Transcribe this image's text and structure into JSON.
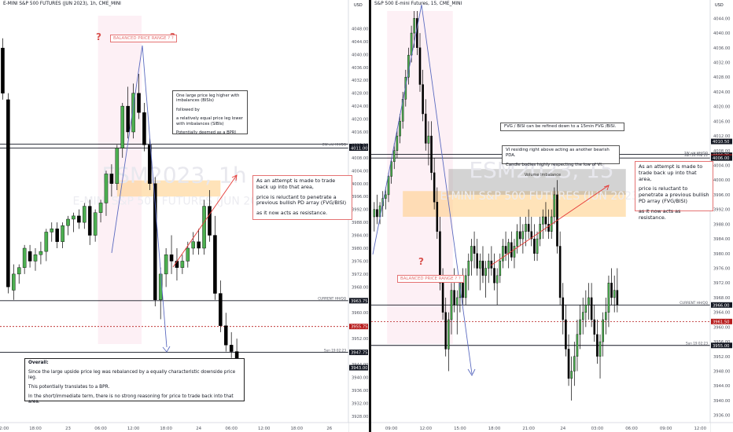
{
  "chart_data": [
    {
      "type": "candlestick",
      "title": "E-MINI S&P 500 FUTURES (JUN 2023), 1h, CME_MINI",
      "watermark_line1": "ESM2023, 1h",
      "watermark_line2": "E-MINI S&P 500 FUTURES (JUN 2023)",
      "y_unit": "USD",
      "ylim": [
        3926,
        4052
      ],
      "y_ticks": [
        "4048.00",
        "4044.00",
        "4040.00",
        "4036.00",
        "4032.00",
        "4028.00",
        "4024.00",
        "4020.00",
        "4016.00",
        "4012.00",
        "4008.00",
        "4004.00",
        "4000.00",
        "3996.00",
        "3992.00",
        "3988.00",
        "3984.00",
        "3980.00",
        "3976.00",
        "3972.00",
        "3968.00",
        "3964.00",
        "3960.00",
        "3956.00",
        "3952.00",
        "3948.00",
        "3944.00",
        "3940.00",
        "3936.00",
        "3932.00",
        "3928.00"
      ],
      "x_ticks": [
        {
          "label": "12:00",
          "i": 0
        },
        {
          "label": "18:00",
          "i": 6
        },
        {
          "label": "23",
          "i": 12
        },
        {
          "label": "06:00",
          "i": 18
        },
        {
          "label": "12:00",
          "i": 24
        },
        {
          "label": "18:00",
          "i": 30
        },
        {
          "label": "24",
          "i": 36
        },
        {
          "label": "06:00",
          "i": 42
        },
        {
          "label": "12:00",
          "i": 48
        },
        {
          "label": "18:00",
          "i": 54
        },
        {
          "label": "26",
          "i": 60
        }
      ],
      "x_slots": 64,
      "candles": [
        [
          4042,
          4045,
          4026,
          4028
        ],
        [
          4026,
          4028,
          3966,
          3968
        ],
        [
          3967,
          3975,
          3964,
          3972
        ],
        [
          3972,
          3975,
          3969,
          3974
        ],
        [
          3974,
          3981,
          3972,
          3980
        ],
        [
          3979,
          3981,
          3974,
          3976
        ],
        [
          3976,
          3980,
          3973,
          3978
        ],
        [
          3978,
          3982,
          3975,
          3979
        ],
        [
          3979,
          3986,
          3976,
          3985
        ],
        [
          3985,
          3988,
          3982,
          3986
        ],
        [
          3986,
          3988,
          3980,
          3982
        ],
        [
          3982,
          3988,
          3980,
          3987
        ],
        [
          3987,
          3990,
          3984,
          3989
        ],
        [
          3989,
          3991,
          3985,
          3990
        ],
        [
          3990,
          3992,
          3986,
          3988
        ],
        [
          3988,
          3994,
          3986,
          3993
        ],
        [
          3993,
          3995,
          3981,
          3984
        ],
        [
          3984,
          3992,
          3982,
          3991
        ],
        [
          3991,
          3995,
          3988,
          3994
        ],
        [
          3994,
          4004,
          3990,
          4003
        ],
        [
          4003,
          4006,
          3996,
          4000
        ],
        [
          4000,
          4012,
          3998,
          4011
        ],
        [
          4011,
          4025,
          4008,
          4024
        ],
        [
          4024,
          4030,
          4014,
          4016
        ],
        [
          4016,
          4031,
          4014,
          4028
        ],
        [
          4028,
          4034,
          4020,
          4022
        ],
        [
          4022,
          4025,
          4010,
          4012
        ],
        [
          4012,
          4014,
          3998,
          4000
        ],
        [
          4000,
          4002,
          3962,
          3964
        ],
        [
          3964,
          3974,
          3958,
          3972
        ],
        [
          3972,
          3980,
          3968,
          3978
        ],
        [
          3978,
          3984,
          3972,
          3976
        ],
        [
          3976,
          3980,
          3970,
          3974
        ],
        [
          3974,
          3978,
          3972,
          3976
        ],
        [
          3976,
          3982,
          3974,
          3980
        ],
        [
          3980,
          3985,
          3978,
          3982
        ],
        [
          3982,
          3986,
          3978,
          3980
        ],
        [
          3980,
          3995,
          3978,
          3993
        ],
        [
          3993,
          3998,
          3982,
          3984
        ],
        [
          3984,
          3990,
          3964,
          3966
        ],
        [
          3966,
          3970,
          3954,
          3956
        ],
        [
          3956,
          3960,
          3948,
          3950
        ],
        [
          3950,
          3954,
          3946,
          3948
        ],
        [
          3948,
          3952,
          3942,
          3943
        ]
      ],
      "annotations": {
        "balanced_range_label": "BALANCED PRICE RANGE ? ?",
        "question_mark": "?",
        "note_imbalance": [
          "One large price leg higher with imbalances (BISIs)",
          "followed by",
          "a relatively equal price leg lower with imbalances (SIBIs)",
          "Potentially deemed as a BPRI"
        ],
        "note_attempt": [
          "As an attempt is made to trade back up into that area,",
          "price is reluctant to penetrate a previous bullish PD array (FVG/BISI)",
          "as it now acts as resistance."
        ],
        "overall_box": {
          "title": "Overall:",
          "lines": [
            "Since the large upside price leg was rebalanced by a equally characteristic downside price leg.",
            "This potentially translates to a BPR.",
            "In the short/immediate term, there is no strong reasoning for price to trade back into that area."
          ]
        }
      },
      "price_labels": [
        {
          "price": 4011.5,
          "text": "4011.50",
          "color": "#131722",
          "tag": "2W old HH/QQ"
        },
        {
          "price": 4011.0,
          "text": "4011.00",
          "color": "#131722",
          "tag": ""
        },
        {
          "price": 3963.75,
          "text": "3963.75",
          "color": "#131722",
          "tag": "CURRENT HH/QQ"
        },
        {
          "price": 3955.75,
          "text": "3955.75",
          "color": "#b71c1c",
          "tag": ""
        },
        {
          "price": 3947.75,
          "text": "3947.75",
          "color": "#131722",
          "tag": "Sun 19 02:23"
        },
        {
          "price": 3943.0,
          "text": "3943.00",
          "color": "#131722",
          "tag": ""
        }
      ],
      "hlines": [
        4012.25,
        4011.0,
        3963.75,
        3947.75
      ],
      "dotted_red_line": 3955.75,
      "zones": {
        "pink_cols": [
          18,
          25
        ],
        "orange": [
          3996,
          4001
        ],
        "orange_cols": [
          21,
          40
        ]
      }
    },
    {
      "type": "candlestick",
      "title": "S&P 500 E-mini Futures, 15, CME_MINI",
      "watermark_line1": "ESM2023, 15",
      "watermark_line2": "E-MINI S&P 500 FUTURES (JUN 2023)",
      "y_unit": "USD",
      "ylim": [
        3934,
        4046
      ],
      "y_ticks": [
        "4044.00",
        "4040.00",
        "4036.00",
        "4032.00",
        "4028.00",
        "4024.00",
        "4020.00",
        "4016.00",
        "4012.00",
        "4008.00",
        "4004.00",
        "4000.00",
        "3996.00",
        "3992.00",
        "3988.00",
        "3984.00",
        "3980.00",
        "3976.00",
        "3972.00",
        "3968.00",
        "3964.00",
        "3960.00",
        "3956.00",
        "3952.00",
        "3948.00",
        "3944.00",
        "3940.00",
        "3936.00"
      ],
      "x_ticks": [
        {
          "label": "09:00",
          "i": 6
        },
        {
          "label": "12:00",
          "i": 18
        },
        {
          "label": "15:00",
          "i": 30
        },
        {
          "label": "18:00",
          "i": 42
        },
        {
          "label": "21:00",
          "i": 54
        },
        {
          "label": "24",
          "i": 66
        },
        {
          "label": "03:00",
          "i": 78
        },
        {
          "label": "06:00",
          "i": 90
        },
        {
          "label": "09:00",
          "i": 102
        },
        {
          "label": "12:00",
          "i": 114
        }
      ],
      "x_slots": 118,
      "candles": [
        [
          3990,
          3994,
          3986,
          3992
        ],
        [
          3992,
          3996,
          3988,
          3990
        ],
        [
          3990,
          3994,
          3988,
          3993
        ],
        [
          3993,
          3997,
          3990,
          3995
        ],
        [
          3995,
          3998,
          3992,
          3996
        ],
        [
          3996,
          4002,
          3994,
          4001
        ],
        [
          4001,
          4006,
          3999,
          4005
        ],
        [
          4005,
          4010,
          4003,
          4008
        ],
        [
          4008,
          4014,
          4006,
          4012
        ],
        [
          4012,
          4018,
          4010,
          4016
        ],
        [
          4016,
          4024,
          4014,
          4022
        ],
        [
          4022,
          4030,
          4020,
          4028
        ],
        [
          4028,
          4036,
          4026,
          4034
        ],
        [
          4034,
          4042,
          4032,
          4040
        ],
        [
          4040,
          4046,
          4036,
          4044
        ],
        [
          4044,
          4046,
          4034,
          4036
        ],
        [
          4036,
          4040,
          4024,
          4026
        ],
        [
          4026,
          4030,
          4016,
          4018
        ],
        [
          4018,
          4022,
          4008,
          4010
        ],
        [
          4010,
          4016,
          4004,
          4012
        ],
        [
          4012,
          4016,
          4000,
          4002
        ],
        [
          4002,
          4006,
          3992,
          3994
        ],
        [
          3994,
          3998,
          3984,
          3986
        ],
        [
          3986,
          3990,
          3970,
          3972
        ],
        [
          3972,
          3976,
          3962,
          3964
        ],
        [
          3964,
          3968,
          3952,
          3954
        ],
        [
          3954,
          3964,
          3948,
          3962
        ],
        [
          3962,
          3972,
          3958,
          3970
        ],
        [
          3970,
          3976,
          3964,
          3966
        ],
        [
          3966,
          3970,
          3958,
          3968
        ],
        [
          3968,
          3974,
          3964,
          3972
        ],
        [
          3972,
          3976,
          3966,
          3968
        ],
        [
          3968,
          3976,
          3966,
          3974
        ],
        [
          3974,
          3980,
          3970,
          3978
        ],
        [
          3978,
          3984,
          3974,
          3982
        ],
        [
          3982,
          3986,
          3976,
          3980
        ],
        [
          3980,
          3984,
          3974,
          3976
        ],
        [
          3976,
          3980,
          3970,
          3978
        ],
        [
          3978,
          3982,
          3972,
          3974
        ],
        [
          3974,
          3978,
          3968,
          3976
        ],
        [
          3976,
          3980,
          3972,
          3978
        ],
        [
          3978,
          3982,
          3974,
          3976
        ],
        [
          3976,
          3980,
          3970,
          3972
        ],
        [
          3972,
          3976,
          3966,
          3974
        ],
        [
          3974,
          3980,
          3972,
          3978
        ],
        [
          3978,
          3984,
          3976,
          3982
        ],
        [
          3982,
          3986,
          3978,
          3980
        ],
        [
          3980,
          3984,
          3976,
          3983
        ],
        [
          3983,
          3986,
          3978,
          3979
        ],
        [
          3979,
          3984,
          3976,
          3982
        ],
        [
          3982,
          3988,
          3980,
          3986
        ],
        [
          3986,
          3990,
          3982,
          3984
        ],
        [
          3984,
          3988,
          3980,
          3986
        ],
        [
          3986,
          3990,
          3982,
          3988
        ],
        [
          3988,
          3992,
          3984,
          3986
        ],
        [
          3986,
          3990,
          3982,
          3984
        ],
        [
          3984,
          3988,
          3978,
          3980
        ],
        [
          3980,
          3986,
          3978,
          3984
        ],
        [
          3984,
          3990,
          3982,
          3988
        ],
        [
          3988,
          3992,
          3984,
          3990
        ],
        [
          3990,
          3994,
          3986,
          3988
        ],
        [
          3988,
          3992,
          3984,
          3986
        ],
        [
          3986,
          3992,
          3984,
          3990
        ],
        [
          3990,
          3998,
          3988,
          3996
        ],
        [
          3996,
          4000,
          3980,
          3982
        ],
        [
          3982,
          3986,
          3966,
          3968
        ],
        [
          3968,
          3972,
          3958,
          3962
        ],
        [
          3962,
          3966,
          3952,
          3954
        ],
        [
          3954,
          3958,
          3944,
          3946
        ],
        [
          3946,
          3952,
          3940,
          3948
        ],
        [
          3948,
          3956,
          3944,
          3952
        ],
        [
          3952,
          3962,
          3948,
          3958
        ],
        [
          3958,
          3966,
          3954,
          3962
        ],
        [
          3962,
          3968,
          3958,
          3964
        ],
        [
          3964,
          3970,
          3960,
          3966
        ],
        [
          3966,
          3972,
          3962,
          3968
        ],
        [
          3968,
          3972,
          3960,
          3962
        ],
        [
          3962,
          3966,
          3956,
          3958
        ],
        [
          3958,
          3962,
          3950,
          3952
        ],
        [
          3952,
          3958,
          3946,
          3956
        ],
        [
          3956,
          3964,
          3952,
          3962
        ],
        [
          3962,
          3968,
          3958,
          3964
        ],
        [
          3964,
          3974,
          3960,
          3972
        ],
        [
          3972,
          3976,
          3966,
          3968
        ],
        [
          3968,
          3974,
          3964,
          3970
        ],
        [
          3970,
          3976,
          3964,
          3966
        ]
      ],
      "annotations": {
        "balanced_range_label": "BALANCED PRICE RANGE ? ?",
        "question_mark": "?",
        "note_fvg": "FVG / BISI can be refined down to a 15min FVG /BISI.",
        "note_vi": [
          "VI residing right above acting as another bearish PDA.",
          "Candle bodies highly respecting the low of VI."
        ],
        "volume_imbalance_label": "Volume Imbalance",
        "note_attempt": [
          "As an attempt is made to trade back up into that area,",
          "price is reluctant to penetrate a previous bullish PD array (FVG/BISI)",
          "as it now acts as resistance."
        ]
      },
      "price_labels": [
        {
          "price": 4010.5,
          "text": "4010.50",
          "color": "#131722",
          "tag": ""
        },
        {
          "price": 4006.75,
          "text": "4006.75",
          "color": "#131722",
          "tag": "2W old HH/QQ"
        },
        {
          "price": 4006.25,
          "text": "4006.25",
          "color": "#b71c1c",
          "tag": "Sun 26 Feb 22"
        },
        {
          "price": 4006.0,
          "text": "4006.00",
          "color": "#131722",
          "tag": ""
        },
        {
          "price": 3966.0,
          "text": "3966.00",
          "color": "#131722",
          "tag": "CURRENT HH/QQ"
        },
        {
          "price": 3961.5,
          "text": "3961.50",
          "color": "#b71c1c",
          "tag": ""
        },
        {
          "price": 3955.0,
          "text": "3955.00",
          "color": "#131722",
          "tag": "Sun 19 02:23"
        }
      ],
      "hlines": [
        4007.0,
        4006.0,
        3966.0,
        3955.0
      ],
      "dotted_red_line": 3961.5,
      "zones": {
        "pink_cols": [
          5,
          27
        ],
        "orange": [
          3990,
          3997
        ],
        "orange_cols": [
          10,
          88
        ],
        "gray": [
          3996,
          4003
        ],
        "gray_cols": [
          26,
          88
        ]
      }
    }
  ]
}
